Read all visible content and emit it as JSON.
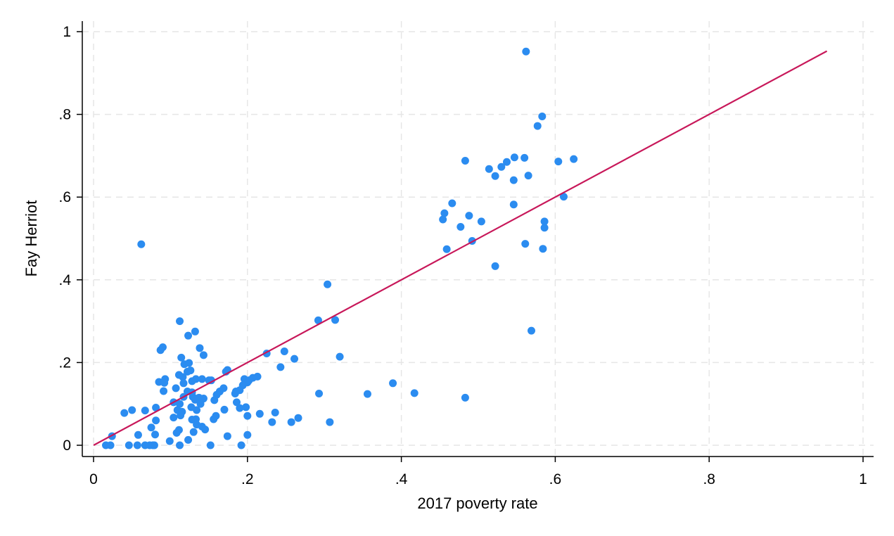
{
  "chart_data": {
    "type": "scatter",
    "title": "",
    "xlabel": "2017 poverty rate",
    "ylabel": "Fay Herriot",
    "xlim": [
      0,
      1
    ],
    "ylim": [
      0,
      1
    ],
    "x_ticks": [
      {
        "value": 0,
        "label": "0"
      },
      {
        "value": 0.2,
        "label": ".2"
      },
      {
        "value": 0.4,
        "label": ".4"
      },
      {
        "value": 0.6,
        "label": ".6"
      },
      {
        "value": 0.8,
        "label": ".8"
      },
      {
        "value": 1,
        "label": "1"
      }
    ],
    "y_ticks": [
      {
        "value": 0,
        "label": "0"
      },
      {
        "value": 0.2,
        "label": ".2"
      },
      {
        "value": 0.4,
        "label": ".4"
      },
      {
        "value": 0.6,
        "label": ".6"
      },
      {
        "value": 0.8,
        "label": ".8"
      },
      {
        "value": 1,
        "label": "1"
      }
    ],
    "grid": "dashed",
    "colors": {
      "points": "#2b8cf0",
      "line": "#c8185a",
      "grid": "#e6e6e6"
    },
    "reference_line": {
      "x": [
        0,
        0.953
      ],
      "y": [
        0,
        0.953
      ]
    },
    "points": [
      [
        0.562,
        0.952
      ],
      [
        0.583,
        0.795
      ],
      [
        0.577,
        0.772
      ],
      [
        0.624,
        0.692
      ],
      [
        0.604,
        0.686
      ],
      [
        0.483,
        0.688
      ],
      [
        0.547,
        0.696
      ],
      [
        0.56,
        0.695
      ],
      [
        0.537,
        0.685
      ],
      [
        0.53,
        0.673
      ],
      [
        0.514,
        0.668
      ],
      [
        0.522,
        0.651
      ],
      [
        0.565,
        0.652
      ],
      [
        0.546,
        0.641
      ],
      [
        0.611,
        0.601
      ],
      [
        0.466,
        0.585
      ],
      [
        0.546,
        0.582
      ],
      [
        0.456,
        0.561
      ],
      [
        0.488,
        0.555
      ],
      [
        0.454,
        0.546
      ],
      [
        0.504,
        0.541
      ],
      [
        0.586,
        0.541
      ],
      [
        0.477,
        0.528
      ],
      [
        0.586,
        0.526
      ],
      [
        0.492,
        0.494
      ],
      [
        0.561,
        0.487
      ],
      [
        0.459,
        0.474
      ],
      [
        0.584,
        0.475
      ],
      [
        0.522,
        0.433
      ],
      [
        0.569,
        0.277
      ],
      [
        0.062,
        0.486
      ],
      [
        0.304,
        0.389
      ],
      [
        0.292,
        0.302
      ],
      [
        0.314,
        0.303
      ],
      [
        0.32,
        0.214
      ],
      [
        0.389,
        0.15
      ],
      [
        0.356,
        0.124
      ],
      [
        0.417,
        0.126
      ],
      [
        0.483,
        0.115
      ],
      [
        0.293,
        0.125
      ],
      [
        0.307,
        0.056
      ],
      [
        0.112,
        0.3
      ],
      [
        0.132,
        0.275
      ],
      [
        0.123,
        0.265
      ],
      [
        0.09,
        0.237
      ],
      [
        0.087,
        0.23
      ],
      [
        0.138,
        0.235
      ],
      [
        0.114,
        0.212
      ],
      [
        0.143,
        0.218
      ],
      [
        0.118,
        0.196
      ],
      [
        0.124,
        0.199
      ],
      [
        0.126,
        0.181
      ],
      [
        0.122,
        0.178
      ],
      [
        0.111,
        0.17
      ],
      [
        0.116,
        0.165
      ],
      [
        0.133,
        0.16
      ],
      [
        0.141,
        0.16
      ],
      [
        0.15,
        0.157
      ],
      [
        0.093,
        0.16
      ],
      [
        0.085,
        0.153
      ],
      [
        0.092,
        0.151
      ],
      [
        0.128,
        0.155
      ],
      [
        0.117,
        0.15
      ],
      [
        0.107,
        0.138
      ],
      [
        0.091,
        0.131
      ],
      [
        0.122,
        0.13
      ],
      [
        0.128,
        0.128
      ],
      [
        0.117,
        0.117
      ],
      [
        0.129,
        0.117
      ],
      [
        0.137,
        0.115
      ],
      [
        0.143,
        0.113
      ],
      [
        0.132,
        0.11
      ],
      [
        0.104,
        0.104
      ],
      [
        0.112,
        0.1
      ],
      [
        0.139,
        0.1
      ],
      [
        0.127,
        0.092
      ],
      [
        0.157,
        0.109
      ],
      [
        0.109,
        0.085
      ],
      [
        0.134,
        0.085
      ],
      [
        0.115,
        0.081
      ],
      [
        0.081,
        0.091
      ],
      [
        0.067,
        0.084
      ],
      [
        0.05,
        0.085
      ],
      [
        0.04,
        0.078
      ],
      [
        0.104,
        0.067
      ],
      [
        0.113,
        0.072
      ],
      [
        0.133,
        0.063
      ],
      [
        0.128,
        0.062
      ],
      [
        0.081,
        0.06
      ],
      [
        0.134,
        0.05
      ],
      [
        0.141,
        0.045
      ],
      [
        0.145,
        0.038
      ],
      [
        0.111,
        0.037
      ],
      [
        0.075,
        0.043
      ],
      [
        0.08,
        0.026
      ],
      [
        0.058,
        0.025
      ],
      [
        0.024,
        0.022
      ],
      [
        0.13,
        0.032
      ],
      [
        0.108,
        0.03
      ],
      [
        0.099,
        0.01
      ],
      [
        0.123,
        0.013
      ],
      [
        0.016,
        0.0
      ],
      [
        0.022,
        0.0
      ],
      [
        0.046,
        0.0
      ],
      [
        0.057,
        0.0
      ],
      [
        0.067,
        0.0
      ],
      [
        0.073,
        0.0
      ],
      [
        0.077,
        0.0
      ],
      [
        0.079,
        0.0
      ],
      [
        0.112,
        0.0
      ],
      [
        0.152,
        0.0
      ],
      [
        0.192,
        0.0
      ],
      [
        0.172,
        0.178
      ],
      [
        0.174,
        0.182
      ],
      [
        0.169,
        0.138
      ],
      [
        0.164,
        0.13
      ],
      [
        0.16,
        0.122
      ],
      [
        0.196,
        0.16
      ],
      [
        0.2,
        0.152
      ],
      [
        0.207,
        0.163
      ],
      [
        0.213,
        0.166
      ],
      [
        0.202,
        0.157
      ],
      [
        0.194,
        0.145
      ],
      [
        0.19,
        0.133
      ],
      [
        0.185,
        0.13
      ],
      [
        0.184,
        0.125
      ],
      [
        0.186,
        0.104
      ],
      [
        0.19,
        0.09
      ],
      [
        0.198,
        0.092
      ],
      [
        0.17,
        0.086
      ],
      [
        0.153,
        0.157
      ],
      [
        0.156,
        0.063
      ],
      [
        0.159,
        0.071
      ],
      [
        0.2,
        0.071
      ],
      [
        0.216,
        0.076
      ],
      [
        0.232,
        0.056
      ],
      [
        0.236,
        0.079
      ],
      [
        0.225,
        0.222
      ],
      [
        0.248,
        0.227
      ],
      [
        0.261,
        0.209
      ],
      [
        0.243,
        0.189
      ],
      [
        0.257,
        0.056
      ],
      [
        0.266,
        0.066
      ],
      [
        0.2,
        0.025
      ],
      [
        0.174,
        0.022
      ]
    ]
  }
}
